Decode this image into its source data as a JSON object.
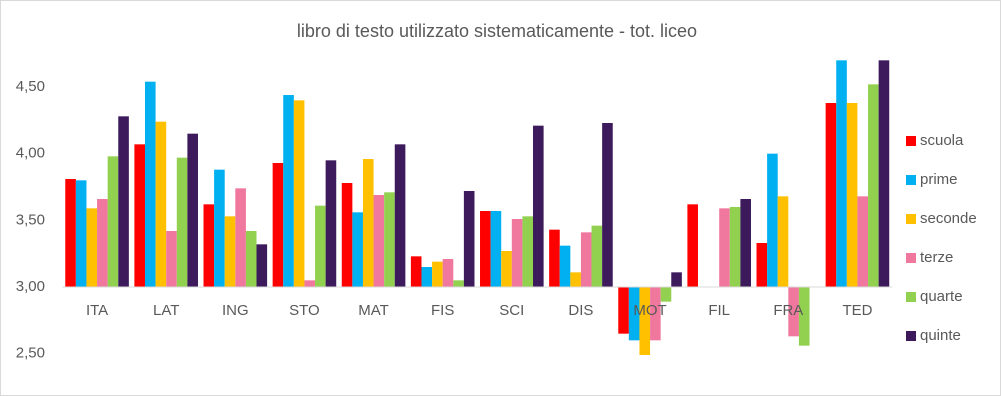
{
  "chart_data": {
    "type": "bar",
    "title": "libro di testo utilizzato sistematicamente - tot. liceo",
    "categories": [
      "ITA",
      "LAT",
      "ING",
      "STO",
      "MAT",
      "FIS",
      "SCI",
      "DIS",
      "MOT",
      "FIL",
      "FRA",
      "TED"
    ],
    "series": [
      {
        "name": "scuola",
        "color": "#ff0000",
        "values": [
          3.81,
          4.07,
          3.62,
          3.93,
          3.78,
          3.23,
          3.57,
          3.43,
          2.65,
          3.62,
          3.33,
          4.38
        ]
      },
      {
        "name": "prime",
        "color": "#00b0f0",
        "values": [
          3.8,
          4.54,
          3.88,
          4.44,
          3.56,
          3.15,
          3.57,
          3.31,
          2.6,
          null,
          4.0,
          4.7
        ]
      },
      {
        "name": "seconde",
        "color": "#ffc000",
        "values": [
          3.59,
          4.24,
          3.53,
          4.4,
          3.96,
          3.19,
          3.27,
          3.11,
          2.49,
          null,
          3.68,
          4.38
        ]
      },
      {
        "name": "terze",
        "color": "#f0789e",
        "values": [
          3.66,
          3.42,
          3.74,
          3.05,
          3.69,
          3.21,
          3.51,
          3.41,
          2.6,
          3.59,
          2.63,
          3.68
        ]
      },
      {
        "name": "quarte",
        "color": "#92d050",
        "values": [
          3.98,
          3.97,
          3.42,
          3.61,
          3.71,
          3.05,
          3.53,
          3.46,
          2.89,
          3.6,
          2.56,
          4.52
        ]
      },
      {
        "name": "quinte",
        "color": "#3c1a5b",
        "values": [
          4.28,
          4.15,
          3.32,
          3.95,
          4.07,
          3.72,
          4.21,
          4.23,
          3.11,
          3.66,
          null,
          4.7
        ]
      }
    ],
    "ylim": [
      2.25,
      4.8
    ],
    "yticks": [
      {
        "value": 2.5,
        "label": "2,50"
      },
      {
        "value": 3.0,
        "label": "3,00"
      },
      {
        "value": 3.5,
        "label": "3,50"
      },
      {
        "value": 4.0,
        "label": "4,00"
      },
      {
        "value": 4.5,
        "label": "4,50"
      }
    ],
    "y_axis_crosses": 3.0,
    "grid": false,
    "legend": "right"
  }
}
